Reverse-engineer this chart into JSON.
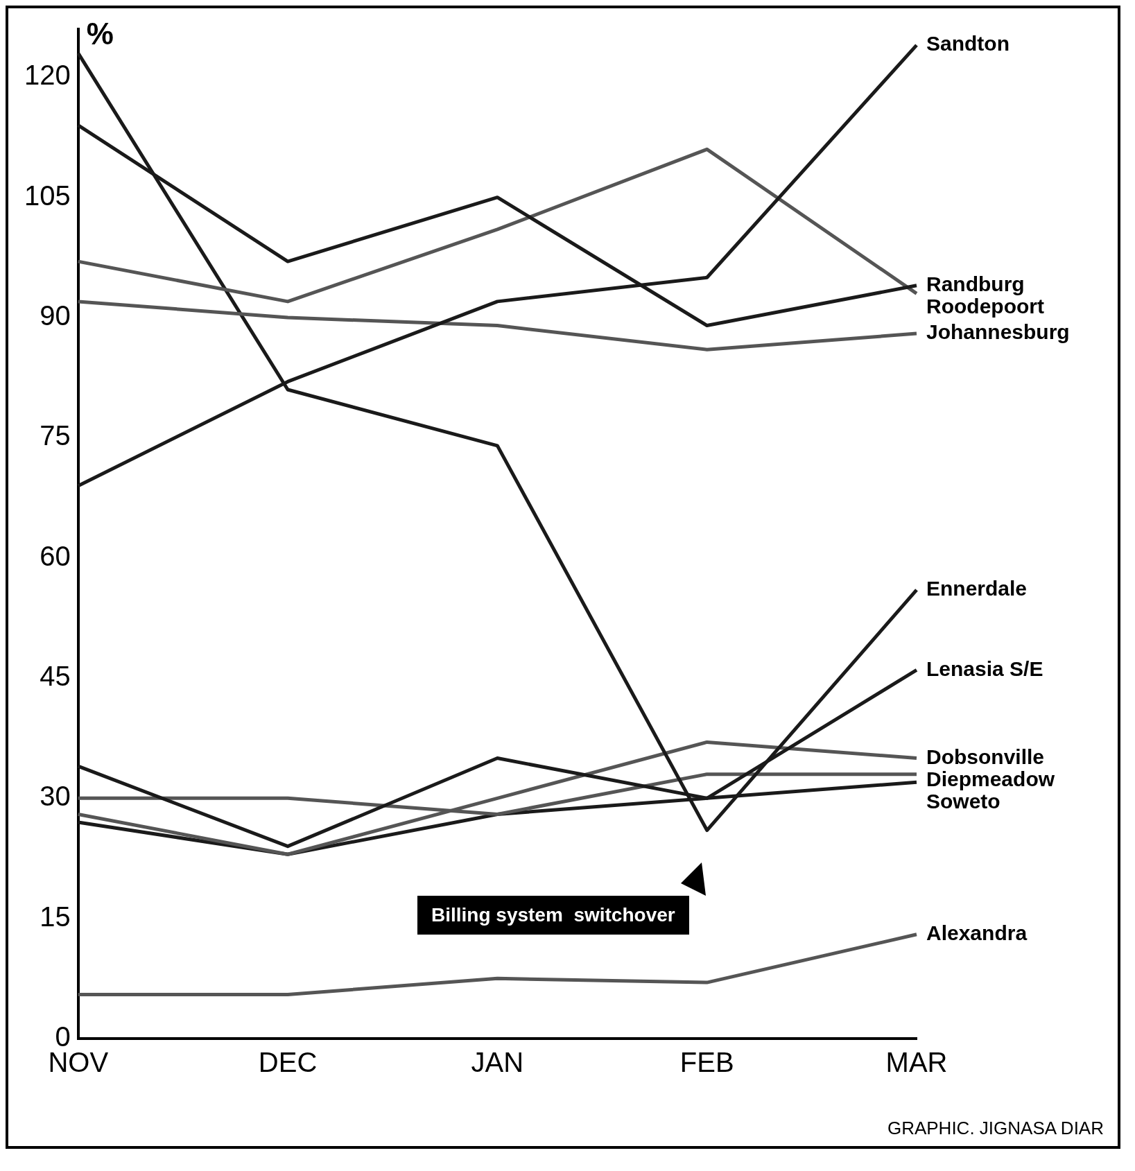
{
  "chart_data": {
    "type": "line",
    "ylabel": "%",
    "categories": [
      "NOV",
      "DEC",
      "JAN",
      "FEB",
      "MAR"
    ],
    "ylim": [
      0,
      126
    ],
    "yticks": [
      0,
      15,
      30,
      45,
      60,
      75,
      90,
      105,
      120
    ],
    "grid": false,
    "legend": false,
    "marker": "none",
    "line_style": "solid",
    "series": [
      {
        "name": "Sandton",
        "color": "#1a1a1a",
        "values": [
          69,
          82,
          92,
          95,
          124
        ]
      },
      {
        "name": "Randburg",
        "color": "#1a1a1a",
        "values": [
          114,
          97,
          105,
          89,
          94
        ]
      },
      {
        "name": "Roodepoort",
        "color": "#555555",
        "values": [
          97,
          92,
          101,
          111,
          93
        ]
      },
      {
        "name": "Johannesburg",
        "color": "#555555",
        "values": [
          92,
          90,
          89,
          86,
          88
        ]
      },
      {
        "name": "Ennerdale",
        "color": "#1a1a1a",
        "values": [
          123,
          81,
          74,
          26,
          56
        ]
      },
      {
        "name": "Lenasia S/E",
        "color": "#1a1a1a",
        "values": [
          34,
          24,
          35,
          30,
          46
        ]
      },
      {
        "name": "Dobsonville",
        "color": "#555555",
        "values": [
          28,
          23,
          30,
          37,
          35
        ]
      },
      {
        "name": "Diepmeadow",
        "color": "#555555",
        "values": [
          30,
          30,
          28,
          33,
          33
        ]
      },
      {
        "name": "Soweto",
        "color": "#1a1a1a",
        "values": [
          27,
          23,
          28,
          30,
          32
        ]
      },
      {
        "name": "Alexandra",
        "color": "#555555",
        "values": [
          5.5,
          5.5,
          7.5,
          7,
          13
        ]
      }
    ],
    "annotations": [
      "Billing system  switchover",
      "GRAPHIC. JIGNASA DIAR"
    ]
  }
}
